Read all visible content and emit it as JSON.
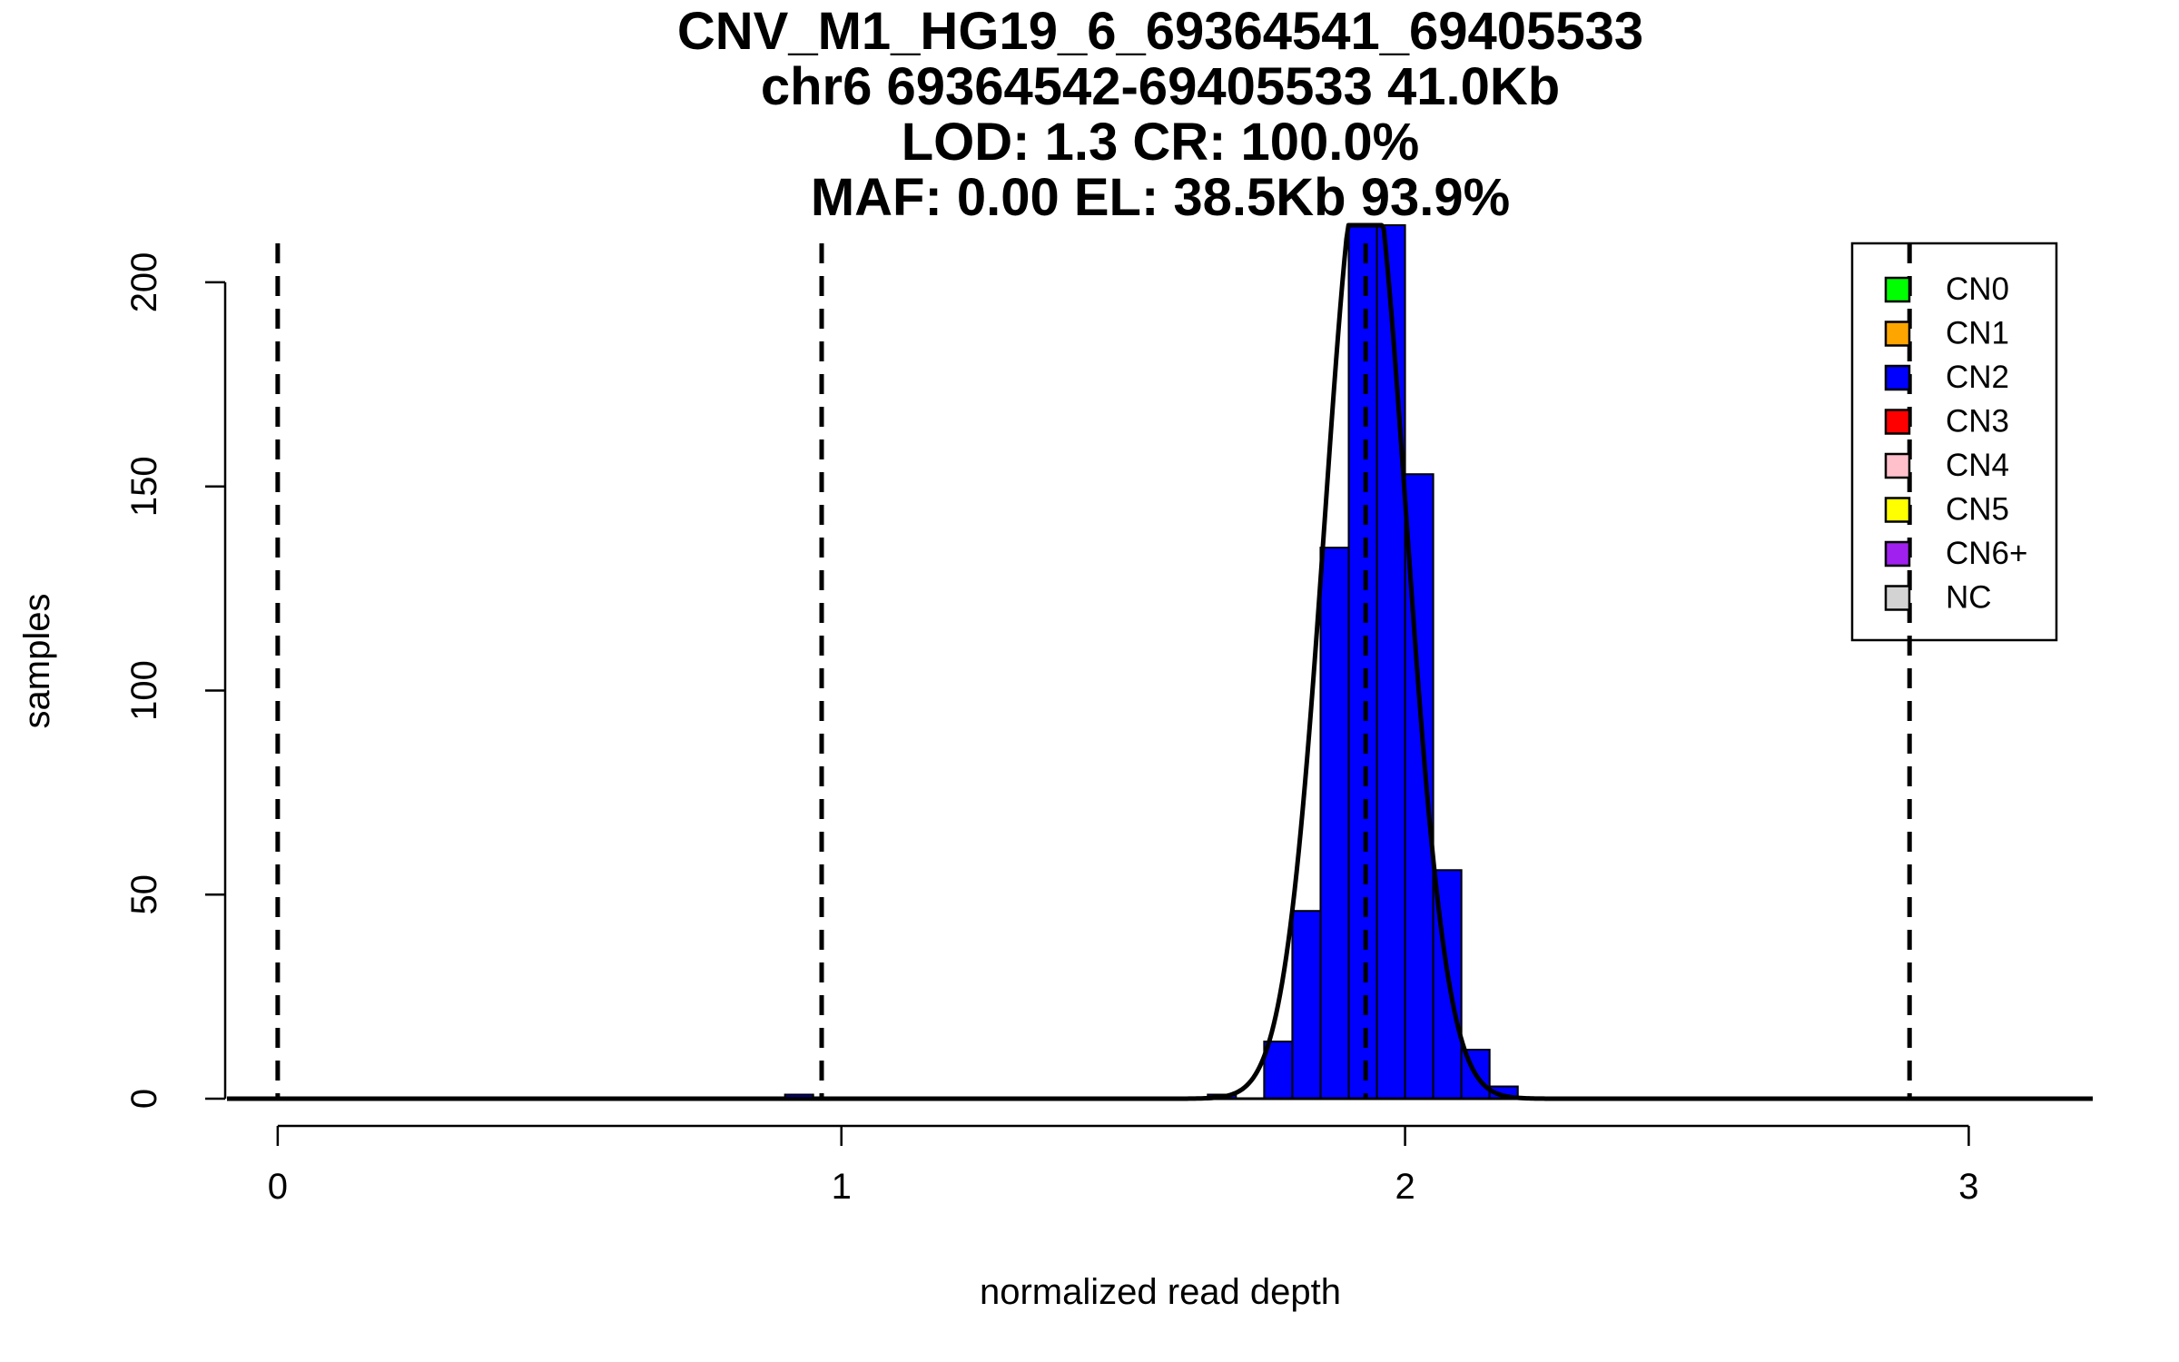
{
  "chart_data": {
    "type": "bar",
    "title_lines": [
      "CNV_M1_HG19_6_69364541_69405533",
      "chr6 69364542-69405533 41.0Kb",
      "LOD: 1.3 CR: 100.0%",
      "MAF: 0.00 EL: 38.5Kb 93.9%"
    ],
    "xlabel": "normalized read depth",
    "ylabel": "samples",
    "xlim": [
      -0.09,
      3.22
    ],
    "ylim": [
      0,
      214
    ],
    "x_ticks": [
      0,
      1,
      2,
      3
    ],
    "y_ticks": [
      0,
      50,
      100,
      150,
      200
    ],
    "bin_width": 0.05,
    "bars": [
      {
        "x0": -0.05,
        "x1": 0.0,
        "value": 0
      },
      {
        "x0": 0.0,
        "x1": 0.05,
        "value": 0
      },
      {
        "x0": 0.8,
        "x1": 0.85,
        "value": 0
      },
      {
        "x0": 0.85,
        "x1": 0.9,
        "value": 0
      },
      {
        "x0": 0.9,
        "x1": 0.95,
        "value": 1
      },
      {
        "x0": 0.95,
        "x1": 1.0,
        "value": 0
      },
      {
        "x0": 1.0,
        "x1": 1.05,
        "value": 0
      },
      {
        "x0": 1.05,
        "x1": 1.1,
        "value": 0
      },
      {
        "x0": 1.65,
        "x1": 1.7,
        "value": 1
      },
      {
        "x0": 1.7,
        "x1": 1.75,
        "value": 0
      },
      {
        "x0": 1.75,
        "x1": 1.8,
        "value": 14
      },
      {
        "x0": 1.8,
        "x1": 1.85,
        "value": 46
      },
      {
        "x0": 1.85,
        "x1": 1.9,
        "value": 135
      },
      {
        "x0": 1.9,
        "x1": 1.95,
        "value": 214
      },
      {
        "x0": 1.95,
        "x1": 2.0,
        "value": 214
      },
      {
        "x0": 2.0,
        "x1": 2.05,
        "value": 153
      },
      {
        "x0": 2.05,
        "x1": 2.1,
        "value": 56
      },
      {
        "x0": 2.1,
        "x1": 2.15,
        "value": 12
      },
      {
        "x0": 2.15,
        "x1": 2.2,
        "value": 3
      },
      {
        "x0": 2.6,
        "x1": 2.65,
        "value": 0
      },
      {
        "x0": 2.65,
        "x1": 2.7,
        "value": 0
      },
      {
        "x0": 2.7,
        "x1": 2.75,
        "value": 0
      },
      {
        "x0": 2.75,
        "x1": 2.8,
        "value": 0
      },
      {
        "x0": 2.8,
        "x1": 2.85,
        "value": 0
      },
      {
        "x0": 2.85,
        "x1": 2.9,
        "value": 0
      },
      {
        "x0": 2.9,
        "x1": 2.95,
        "value": 0
      },
      {
        "x0": 2.95,
        "x1": 3.0,
        "value": 0
      },
      {
        "x0": 3.0,
        "x1": 3.05,
        "value": 0
      },
      {
        "x0": 3.05,
        "x1": 3.1,
        "value": 0
      }
    ],
    "bar_color": "#0000ff",
    "vlines": [
      0.0,
      0.965,
      1.93,
      2.895
    ],
    "density_curve": {
      "mean": 1.93,
      "sd": 0.072,
      "n": 850,
      "bin_width": 0.05,
      "x_range": [
        -0.09,
        3.22
      ]
    },
    "legend": {
      "position": "top-right",
      "entries": [
        {
          "label": "CN0",
          "color": "#00ff00"
        },
        {
          "label": "CN1",
          "color": "#ffa500"
        },
        {
          "label": "CN2",
          "color": "#0000ff"
        },
        {
          "label": "CN3",
          "color": "#ff0000"
        },
        {
          "label": "CN4",
          "color": "#ffc0cb"
        },
        {
          "label": "CN5",
          "color": "#ffff00"
        },
        {
          "label": "CN6+",
          "color": "#a020f0"
        },
        {
          "label": "NC",
          "color": "#d3d3d3"
        }
      ]
    },
    "grid": false
  }
}
